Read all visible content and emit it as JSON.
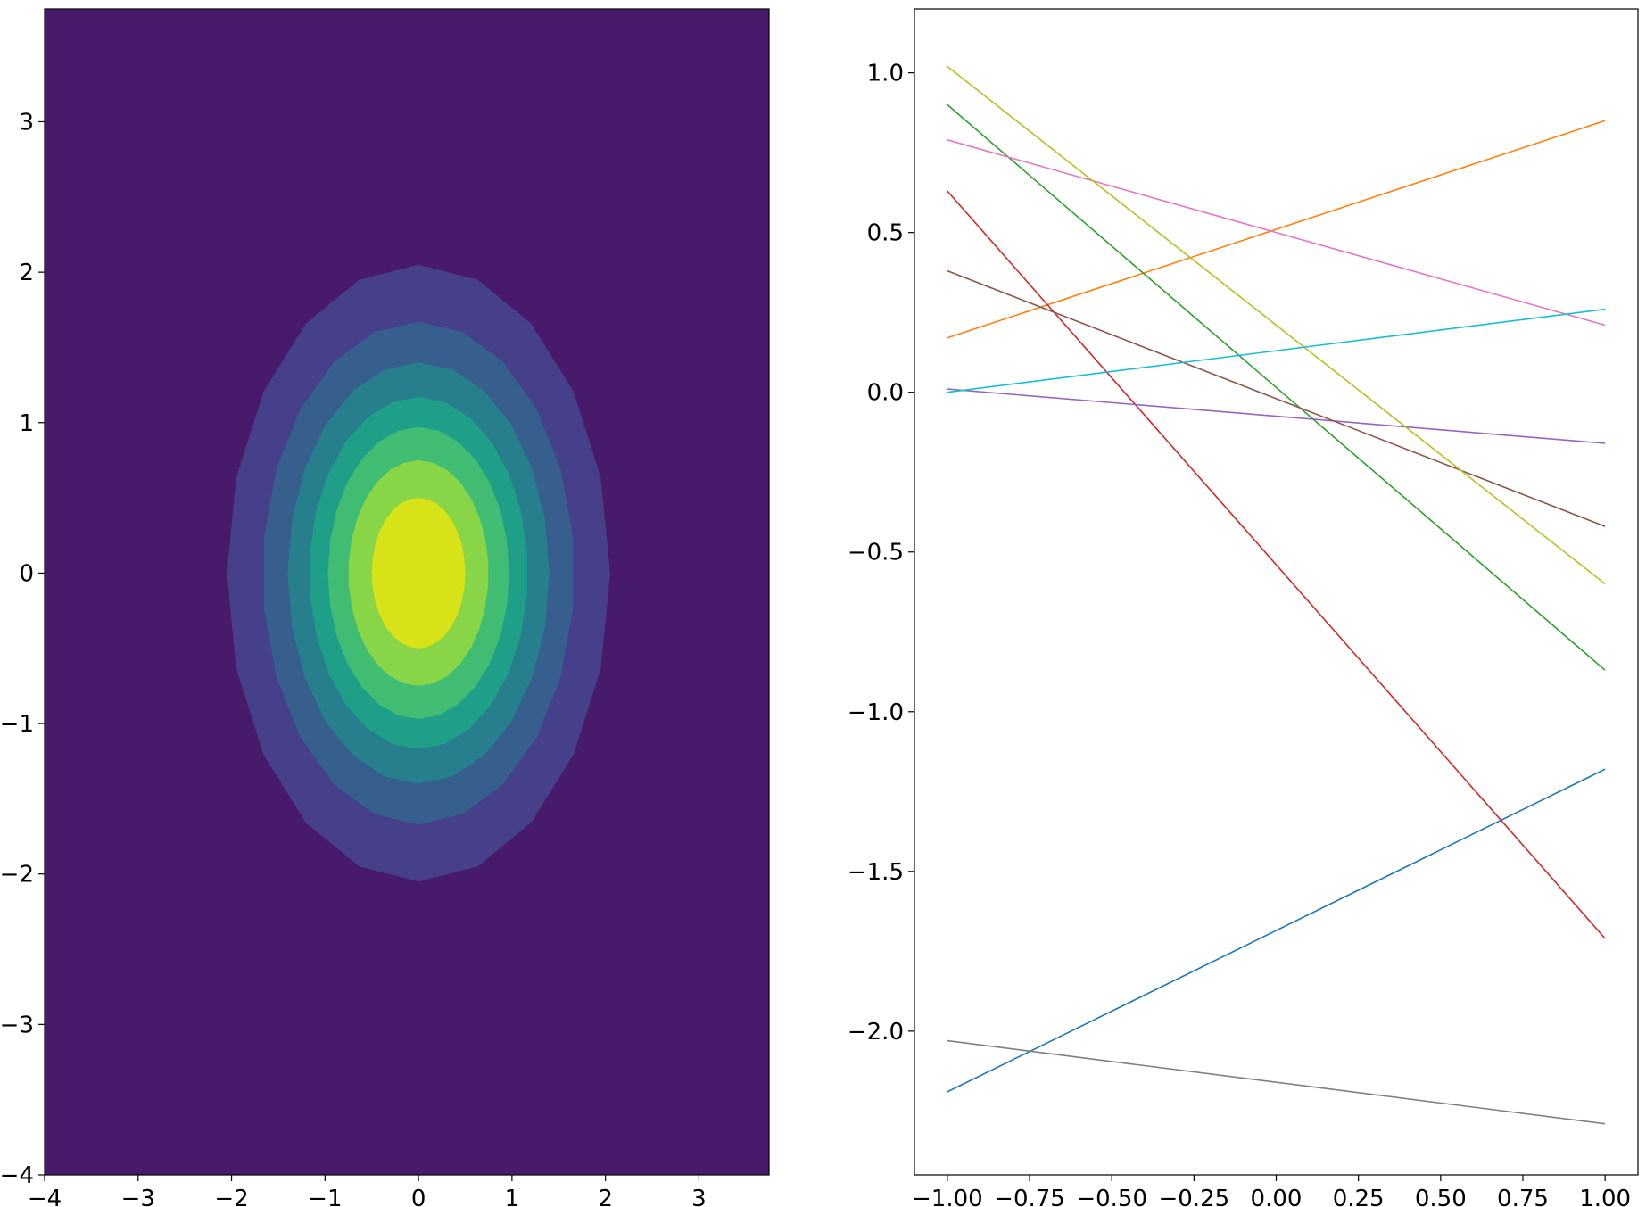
{
  "chart_data": [
    {
      "type": "contour",
      "title": "",
      "xlabel": "",
      "ylabel": "",
      "xlim": [
        -4,
        3.75
      ],
      "ylim": [
        -4,
        3.75
      ],
      "xticks": [
        -4,
        -3,
        -2,
        -1,
        0,
        1,
        2,
        3
      ],
      "yticks": [
        -4,
        -3,
        -2,
        -1,
        0,
        1,
        2,
        3
      ],
      "xtick_labels": [
        "−4",
        "−3",
        "−2",
        "−1",
        "0",
        "1",
        "2",
        "3"
      ],
      "ytick_labels": [
        "−4",
        "−3",
        "−2",
        "−1",
        "0",
        "1",
        "2",
        "3"
      ],
      "colormap": "viridis",
      "background_color": "#481a6c",
      "levels": [
        {
          "level": 1,
          "color": "#46408a",
          "x_half_width": 2.05,
          "y_half_height": 2.05
        },
        {
          "level": 2,
          "color": "#365f8d",
          "x_half_width": 1.67,
          "y_half_height": 1.67
        },
        {
          "level": 3,
          "color": "#277f8e",
          "x_half_width": 1.4,
          "y_half_height": 1.4
        },
        {
          "level": 4,
          "color": "#1f9f88",
          "x_half_width": 1.17,
          "y_half_height": 1.17
        },
        {
          "level": 5,
          "color": "#40bd72",
          "x_half_width": 0.97,
          "y_half_height": 0.97
        },
        {
          "level": 6,
          "color": "#89d548",
          "x_half_width": 0.75,
          "y_half_height": 0.75
        },
        {
          "level": 7,
          "color": "#d8e219",
          "x_half_width": 0.5,
          "y_half_height": 0.5
        }
      ]
    },
    {
      "type": "line",
      "title": "",
      "xlabel": "",
      "ylabel": "",
      "xlim": [
        -1.1,
        1.1
      ],
      "ylim": [
        -2.45,
        1.2
      ],
      "xticks": [
        -1.0,
        -0.75,
        -0.5,
        -0.25,
        0.0,
        0.25,
        0.5,
        0.75,
        1.0
      ],
      "xtick_labels": [
        "−1.00",
        "−0.75",
        "−0.50",
        "−0.25",
        "0.00",
        "0.25",
        "0.50",
        "0.75",
        "1.00"
      ],
      "yticks": [
        -2.0,
        -1.5,
        -1.0,
        -0.5,
        0.0,
        0.5,
        1.0
      ],
      "ytick_labels": [
        "−2.0",
        "−1.5",
        "−1.0",
        "−0.5",
        "0.0",
        "0.5",
        "1.0"
      ],
      "x": [
        -1.0,
        1.0
      ],
      "series": [
        {
          "color": "#1f77b4",
          "values": [
            -2.19,
            -1.18
          ]
        },
        {
          "color": "#ff7f0e",
          "values": [
            0.17,
            0.85
          ]
        },
        {
          "color": "#2ca02c",
          "values": [
            0.9,
            -0.87
          ]
        },
        {
          "color": "#d62728",
          "values": [
            0.63,
            -1.71
          ]
        },
        {
          "color": "#9467bd",
          "values": [
            0.01,
            -0.16
          ]
        },
        {
          "color": "#8c564b",
          "values": [
            0.38,
            -0.42
          ]
        },
        {
          "color": "#e377c2",
          "values": [
            0.79,
            0.21
          ]
        },
        {
          "color": "#7f7f7f",
          "values": [
            -2.03,
            -2.29
          ]
        },
        {
          "color": "#bcbd22",
          "values": [
            1.02,
            -0.6
          ]
        },
        {
          "color": "#17becf",
          "values": [
            0.0,
            0.26
          ]
        }
      ]
    }
  ]
}
